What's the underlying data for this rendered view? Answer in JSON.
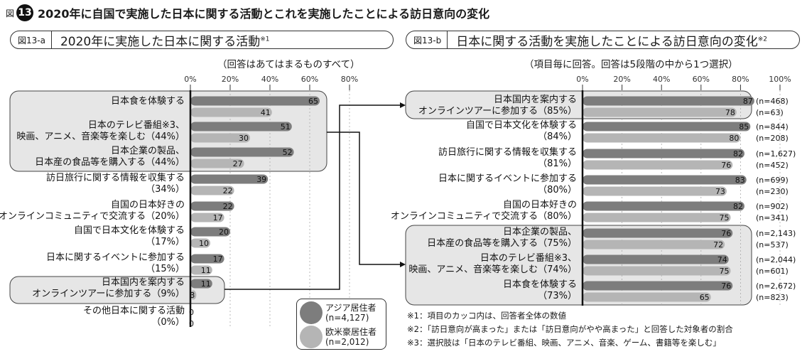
{
  "header": {
    "zu": "図",
    "number": "13",
    "title": "2020年に自国で実施した日本に関する活動とこれを実施したことによる訪日意向の変化"
  },
  "left_panel": {
    "tag": "図13-a",
    "title": "2020年に実施した日本に関する活動",
    "title_sup": "※1",
    "note": "（回答はあてはまるものすべて）"
  },
  "right_panel": {
    "tag": "図13-b",
    "title": "日本に関する活動を実施したことによる訪日意向の変化",
    "title_sup": "※2",
    "note": "（項目毎に回答。回答は5段階の中から1つ選択）"
  },
  "legend": {
    "asia_l1": "アジア居住者",
    "asia_l2": "(n=4,127)",
    "west_l1": "欧米豪居住者",
    "west_l2": "(n=2,012)"
  },
  "footnotes": [
    "※1：項目のカッコ内は、回答者全体の数値",
    "※2：「訪日意向が高まった」または「訪日意向がやや高まった」と回答した対象者の割合",
    "※3：選択肢は「日本のテレビ番組、映画、アニメ、音楽、ゲーム、書籍等を楽しむ」"
  ],
  "colors": {
    "asia": "#7d7d7d",
    "west": "#b5b5b5",
    "highlight": "#e6e6e6"
  },
  "chart_data": [
    {
      "type": "bar",
      "orientation": "horizontal",
      "title": "2020年に実施した日本に関する活動",
      "xlim": [
        0,
        80
      ],
      "tick_labels": [
        "0%",
        "20%",
        "40%",
        "60%",
        "80%"
      ],
      "categories": [
        [
          "日本食を体験する"
        ],
        [
          "日本のテレビ番組※3、",
          "映画、アニメ、音楽等を楽しむ（44%）"
        ],
        [
          "日本企業の製品、",
          "日本産の食品等を購入する（44%）"
        ],
        [
          "訪日旅行に関する情報を収集する",
          "（34%）"
        ],
        [
          "自国の日本好きの",
          "オンラインコミュニティで交流する（20%）"
        ],
        [
          "自国で日本文化を体験する",
          "（17%）"
        ],
        [
          "日本に関するイベントに参加する",
          "（15%）"
        ],
        [
          "日本国内を案内する",
          "オンラインツアーに参加する（9%）"
        ],
        [
          "その他日本に関する活動",
          "（0%）"
        ]
      ],
      "series": [
        {
          "name": "アジア居住者",
          "values": [
            65,
            51,
            52,
            39,
            22,
            20,
            17,
            11,
            0
          ]
        },
        {
          "name": "欧米豪居住者",
          "values": [
            41,
            30,
            27,
            22,
            17,
            10,
            11,
            3,
            0
          ]
        }
      ]
    },
    {
      "type": "bar",
      "orientation": "horizontal",
      "title": "日本に関する活動を実施したことによる訪日意向の変化",
      "xlim": [
        0,
        100
      ],
      "tick_labels": [
        "0%",
        "20%",
        "40%",
        "60%",
        "80%",
        "100%"
      ],
      "categories": [
        [
          "日本国内を案内する",
          "オンラインツアーに参加する（85%）"
        ],
        [
          "自国で日本文化を体験する",
          "（84%）"
        ],
        [
          "訪日旅行に関する情報を収集する",
          "（81%）"
        ],
        [
          "日本に関するイベントに参加する",
          "（80%）"
        ],
        [
          "自国の日本好きの",
          "オンラインコミュニティで交流する（80%）"
        ],
        [
          "日本企業の製品、",
          "日本産の食品等を購入する（75%）"
        ],
        [
          "日本のテレビ番組※3、",
          "映画、アニメ、音楽等を楽しむ（74%）"
        ],
        [
          "日本食を体験する",
          "（73%）"
        ]
      ],
      "series": [
        {
          "name": "アジア居住者",
          "values": [
            87,
            85,
            82,
            83,
            82,
            76,
            74,
            76
          ],
          "n": [
            "(n=468)",
            "(n=844)",
            "(n=1,627)",
            "(n=699)",
            "(n=902)",
            "(n=2,143)",
            "(n=2,044)",
            "(n=2,672)"
          ]
        },
        {
          "name": "欧米豪居住者",
          "values": [
            78,
            80,
            76,
            73,
            75,
            72,
            75,
            65
          ],
          "n": [
            "(n=63)",
            "(n=208)",
            "(n=452)",
            "(n=230)",
            "(n=341)",
            "(n=537)",
            "(n=601)",
            "(n=823)"
          ]
        }
      ]
    }
  ]
}
